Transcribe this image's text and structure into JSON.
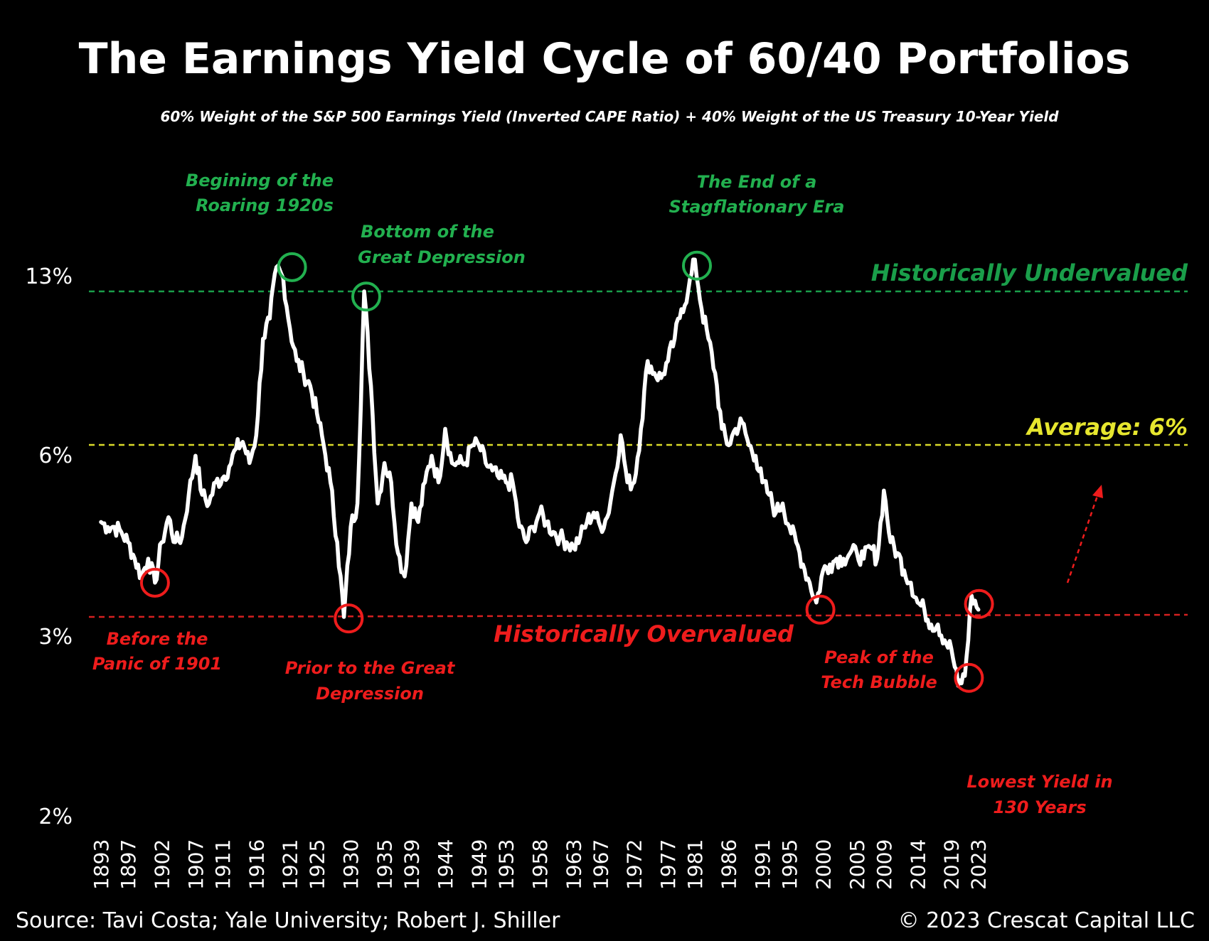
{
  "chart_data": {
    "type": "line",
    "title": "The Earnings Yield Cycle of 60/40 Portfolios",
    "subtitle": "60% Weight of the S&P 500 Earnings Yield (Inverted CAPE Ratio) + 40% Weight of the US Treasury 10-Year Yield",
    "y_scale": "log",
    "ylim": [
      2,
      17
    ],
    "y_ticks": [
      {
        "value": 13,
        "label": "13%"
      },
      {
        "value": 6,
        "label": "6%"
      },
      {
        "value": 3,
        "label": "3%"
      },
      {
        "value": 2,
        "label": "2%"
      }
    ],
    "xlim": [
      1893,
      2024
    ],
    "x_ticks": [
      "1893",
      "1897",
      "1902",
      "1907",
      "1911",
      "1916",
      "1921",
      "1925",
      "1930",
      "1935",
      "1939",
      "1944",
      "1949",
      "1953",
      "1958",
      "1963",
      "1967",
      "1972",
      "1977",
      "1981",
      "1986",
      "1991",
      "1995",
      "2000",
      "2005",
      "2009",
      "2014",
      "2019",
      "2023"
    ],
    "grid": false,
    "series": [
      {
        "color": "#ffffff",
        "x": [
          1893,
          1894,
          1895,
          1896,
          1897,
          1898,
          1899,
          1900,
          1901,
          1902,
          1903,
          1904,
          1905,
          1906,
          1907,
          1908,
          1909,
          1910,
          1911,
          1912,
          1913,
          1914,
          1915,
          1916,
          1917,
          1918,
          1919,
          1920,
          1921,
          1922,
          1923,
          1924,
          1925,
          1926,
          1927,
          1928,
          1929,
          1930,
          1931,
          1932,
          1933,
          1934,
          1935,
          1936,
          1937,
          1938,
          1939,
          1940,
          1941,
          1942,
          1943,
          1944,
          1945,
          1946,
          1947,
          1948,
          1949,
          1950,
          1951,
          1952,
          1953,
          1954,
          1955,
          1956,
          1957,
          1958,
          1959,
          1960,
          1961,
          1962,
          1963,
          1964,
          1965,
          1966,
          1967,
          1968,
          1969,
          1970,
          1971,
          1972,
          1973,
          1974,
          1975,
          1976,
          1977,
          1978,
          1979,
          1980,
          1981,
          1982,
          1983,
          1984,
          1985,
          1986,
          1987,
          1988,
          1989,
          1990,
          1991,
          1992,
          1993,
          1994,
          1995,
          1996,
          1997,
          1998,
          1999,
          2000,
          2001,
          2002,
          2003,
          2004,
          2005,
          2006,
          2007,
          2008,
          2009,
          2010,
          2011,
          2012,
          2013,
          2014,
          2015,
          2016,
          2017,
          2018,
          2019,
          2020,
          2021,
          2022,
          2023
        ],
        "values": [
          4.6,
          4.5,
          4.5,
          4.4,
          4.2,
          3.9,
          3.6,
          3.9,
          3.5,
          4.2,
          4.7,
          4.2,
          4.3,
          5.2,
          6.2,
          5.2,
          5.0,
          5.5,
          5.6,
          5.9,
          6.4,
          6.6,
          6.0,
          6.8,
          10.5,
          11.5,
          14.5,
          13.8,
          11.0,
          9.5,
          9.0,
          8.5,
          7.5,
          6.5,
          5.5,
          4.2,
          3.0,
          4.5,
          5.0,
          13.0,
          8.5,
          5.0,
          6.0,
          5.5,
          4.0,
          3.6,
          5.0,
          4.6,
          5.5,
          6.2,
          5.5,
          7.0,
          6.0,
          6.0,
          6.0,
          6.5,
          6.5,
          6.0,
          5.8,
          5.6,
          5.5,
          5.5,
          4.5,
          4.2,
          4.5,
          4.8,
          4.6,
          4.4,
          4.3,
          4.2,
          4.1,
          4.3,
          4.6,
          4.8,
          4.5,
          4.7,
          5.5,
          6.8,
          5.5,
          5.5,
          7.0,
          9.5,
          9.0,
          8.8,
          9.5,
          10.5,
          12.0,
          13.0,
          15.0,
          12.0,
          10.5,
          9.0,
          7.0,
          6.5,
          7.0,
          7.2,
          6.5,
          6.2,
          5.5,
          5.2,
          4.8,
          5.0,
          4.5,
          4.2,
          3.8,
          3.5,
          3.2,
          3.7,
          3.8,
          3.9,
          3.9,
          4.0,
          4.0,
          3.9,
          4.1,
          3.9,
          5.3,
          4.2,
          4.0,
          3.7,
          3.5,
          3.2,
          3.1,
          2.9,
          2.9,
          2.7,
          2.6,
          2.2,
          2.3,
          3.3,
          3.1
        ]
      }
    ],
    "reference_lines": [
      {
        "value": 12.8,
        "color": "#1a9e4a",
        "label": "Historically Undervalued"
      },
      {
        "value": 6.3,
        "color": "#d9d92a",
        "label": "Average: 6%"
      },
      {
        "value": 3.15,
        "color": "#d42020",
        "label": "Historically Overvalued"
      }
    ],
    "annotations": [
      {
        "lines": [
          "Begining of the",
          "Roaring 1920s"
        ],
        "color": "#22b04f",
        "year": 1921.3,
        "value": 14.5
      },
      {
        "lines": [
          "Bottom of the",
          "Great Depression"
        ],
        "color": "#22b04f",
        "year": 1932.3,
        "value": 12.7
      },
      {
        "lines": [
          "The End of a",
          "Stagflationary Era"
        ],
        "color": "#22b04f",
        "year": 1981.3,
        "value": 14.6
      },
      {
        "lines": [
          "Before the",
          "Panic of 1901"
        ],
        "color": "#ee1c1c",
        "year": 1901.0,
        "value": 3.5
      },
      {
        "lines": [
          "Prior to the Great",
          "Depression"
        ],
        "color": "#ee1c1c",
        "year": 1929.7,
        "value": 2.98
      },
      {
        "lines": [
          "Peak of the",
          "Tech Bubble"
        ],
        "color": "#ee1c1c",
        "year": 1999.6,
        "value": 3.1
      },
      {
        "lines": [
          "Lowest Yield in",
          "130 Years"
        ],
        "color": "#ee1c1c",
        "year": 2021.6,
        "value": 2.28
      }
    ],
    "source": "Source: Tavi Costa; Yale University; Robert J. Shiller",
    "copyright": "© 2023 Crescat Capital LLC"
  },
  "colors": {
    "background": "#000000",
    "line": "#ffffff",
    "circle_green": "#22b04f",
    "circle_red": "#ee1c1c",
    "arrow": "#ee1c1c"
  }
}
